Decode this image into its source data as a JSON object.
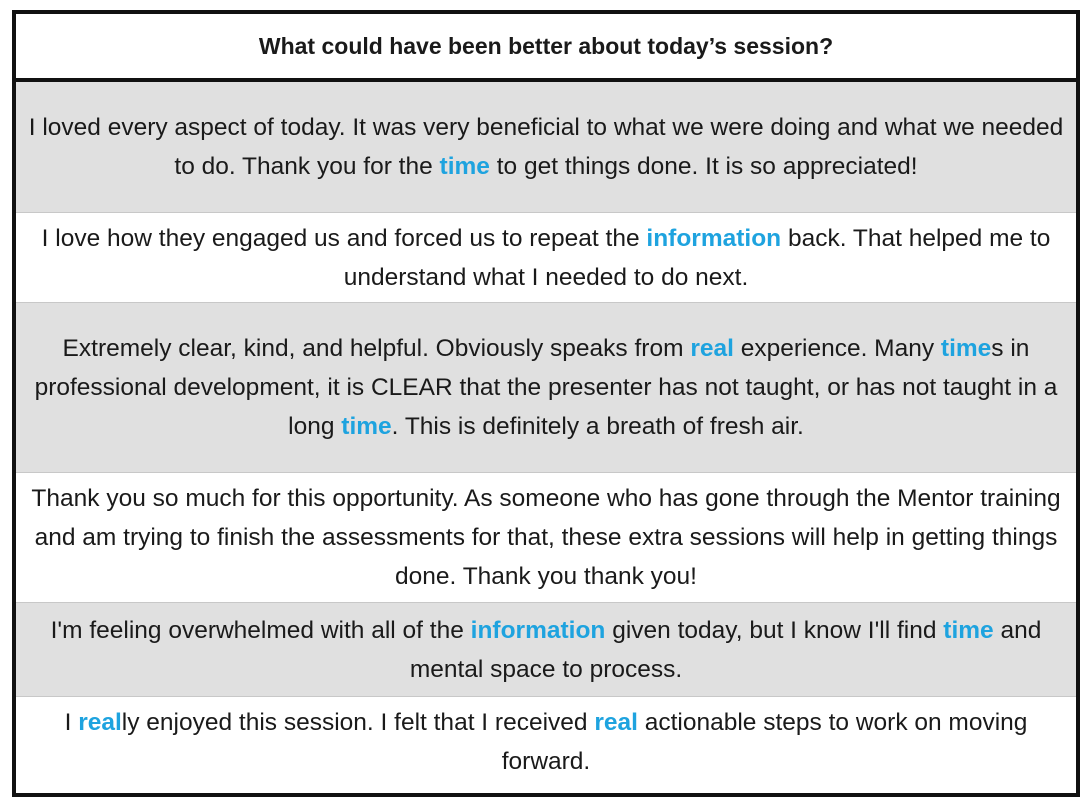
{
  "header": {
    "question": "What could have been better about today’s session?"
  },
  "highlight_color": "#1ea3df",
  "responses": [
    {
      "segments": [
        {
          "text": "I loved every aspect of today. It was very beneficial to what we were doing and what we needed to do. Thank you for the ",
          "hl": false
        },
        {
          "text": "time",
          "hl": true
        },
        {
          "text": " to get things done. It is so appreciated!",
          "hl": false
        }
      ]
    },
    {
      "segments": [
        {
          "text": "I love how they engaged us and forced us to repeat the ",
          "hl": false
        },
        {
          "text": "information",
          "hl": true
        },
        {
          "text": " back. That helped me to understand what I needed to do next.",
          "hl": false
        }
      ]
    },
    {
      "segments": [
        {
          "text": "Extremely clear, kind, and helpful. Obviously speaks from ",
          "hl": false
        },
        {
          "text": "real",
          "hl": true
        },
        {
          "text": " experience. Many ",
          "hl": false
        },
        {
          "text": "time",
          "hl": true
        },
        {
          "text": "s in professional development, it is CLEAR that the presenter has not taught, or has not taught in a long ",
          "hl": false
        },
        {
          "text": "time",
          "hl": true
        },
        {
          "text": ". This is definitely a breath of fresh air.",
          "hl": false
        }
      ]
    },
    {
      "segments": [
        {
          "text": "Thank you so much for this opportunity. As someone who has gone through the Mentor training and am trying to finish the assessments for that, these extra sessions will help in getting things done. Thank you thank you!",
          "hl": false
        }
      ]
    },
    {
      "segments": [
        {
          "text": "I'm feeling overwhelmed with all of the ",
          "hl": false
        },
        {
          "text": "information",
          "hl": true
        },
        {
          "text": " given today, but I know I'll find ",
          "hl": false
        },
        {
          "text": "time",
          "hl": true
        },
        {
          "text": " and mental space to process.",
          "hl": false
        }
      ]
    },
    {
      "segments": [
        {
          "text": "I ",
          "hl": false
        },
        {
          "text": "real",
          "hl": true
        },
        {
          "text": "ly enjoyed this session. I felt that I received ",
          "hl": false
        },
        {
          "text": "real",
          "hl": true
        },
        {
          "text": " actionable steps to work on moving forward.",
          "hl": false
        }
      ]
    }
  ]
}
